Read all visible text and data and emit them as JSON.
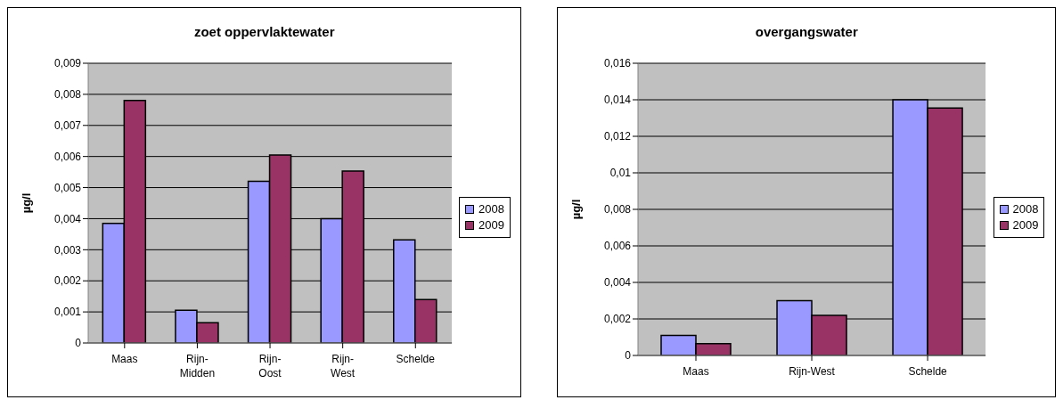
{
  "chart_data": [
    {
      "type": "bar",
      "title": "zoet oppervlaktewater",
      "ylabel": "µg/l",
      "categories": [
        "Maas",
        "Rijn-Midden",
        "Rijn-Oost",
        "Rijn-West",
        "Schelde"
      ],
      "series": [
        {
          "name": "2008",
          "color": "#9999ff",
          "values": [
            0.00385,
            0.00105,
            0.0052,
            0.004,
            0.00332
          ]
        },
        {
          "name": "2009",
          "color": "#993366",
          "values": [
            0.0078,
            0.00065,
            0.00605,
            0.00553,
            0.0014
          ]
        }
      ],
      "ylim": [
        0,
        0.009
      ],
      "yticks": [
        0,
        {
          "value": 0.001,
          "label": "0,001"
        },
        {
          "value": 0.002,
          "label": "0,002"
        },
        {
          "value": 0.003,
          "label": "0,003"
        },
        {
          "value": 0.004,
          "label": "0,004"
        },
        {
          "value": 0.005,
          "label": "0,005"
        },
        {
          "value": 0.006,
          "label": "0,006"
        },
        {
          "value": 0.007,
          "label": "0,007"
        },
        {
          "value": 0.008,
          "label": "0,008"
        },
        {
          "value": 0.009,
          "label": "0,009"
        }
      ],
      "grid": "y",
      "legend": "right"
    },
    {
      "type": "bar",
      "title": "overgangswater",
      "ylabel": "µg/l",
      "categories": [
        "Maas",
        "Rijn-West",
        "Schelde"
      ],
      "series": [
        {
          "name": "2008",
          "color": "#9999ff",
          "values": [
            0.0011,
            0.003,
            0.014
          ]
        },
        {
          "name": "2009",
          "color": "#993366",
          "values": [
            0.00065,
            0.0022,
            0.01355
          ]
        }
      ],
      "ylim": [
        0,
        0.016
      ],
      "yticks": [
        0,
        {
          "value": 0.002,
          "label": "0,002"
        },
        {
          "value": 0.004,
          "label": "0,004"
        },
        {
          "value": 0.006,
          "label": "0,006"
        },
        {
          "value": 0.008,
          "label": "0,008"
        },
        {
          "value": 0.01,
          "label": "0,01"
        },
        {
          "value": 0.012,
          "label": "0,012"
        },
        {
          "value": 0.014,
          "label": "0,014"
        },
        {
          "value": 0.016,
          "label": "0,016"
        }
      ],
      "grid": "y",
      "legend": "right"
    }
  ]
}
